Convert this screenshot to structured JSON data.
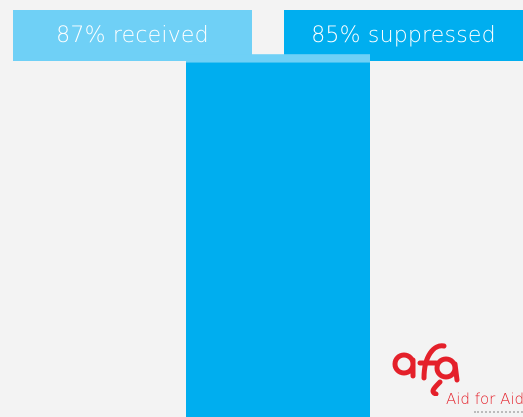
{
  "chart_data": {
    "type": "bar",
    "series": [
      {
        "name": "87% received",
        "value": 87,
        "color": "#6fd0f6"
      },
      {
        "name": "85% suppressed",
        "value": 85,
        "color": "#00aeef"
      }
    ],
    "ylim": [
      0,
      100
    ],
    "legend_placement": "top"
  },
  "logo": {
    "text": "Aid for Aid",
    "color": "#e4202a"
  }
}
